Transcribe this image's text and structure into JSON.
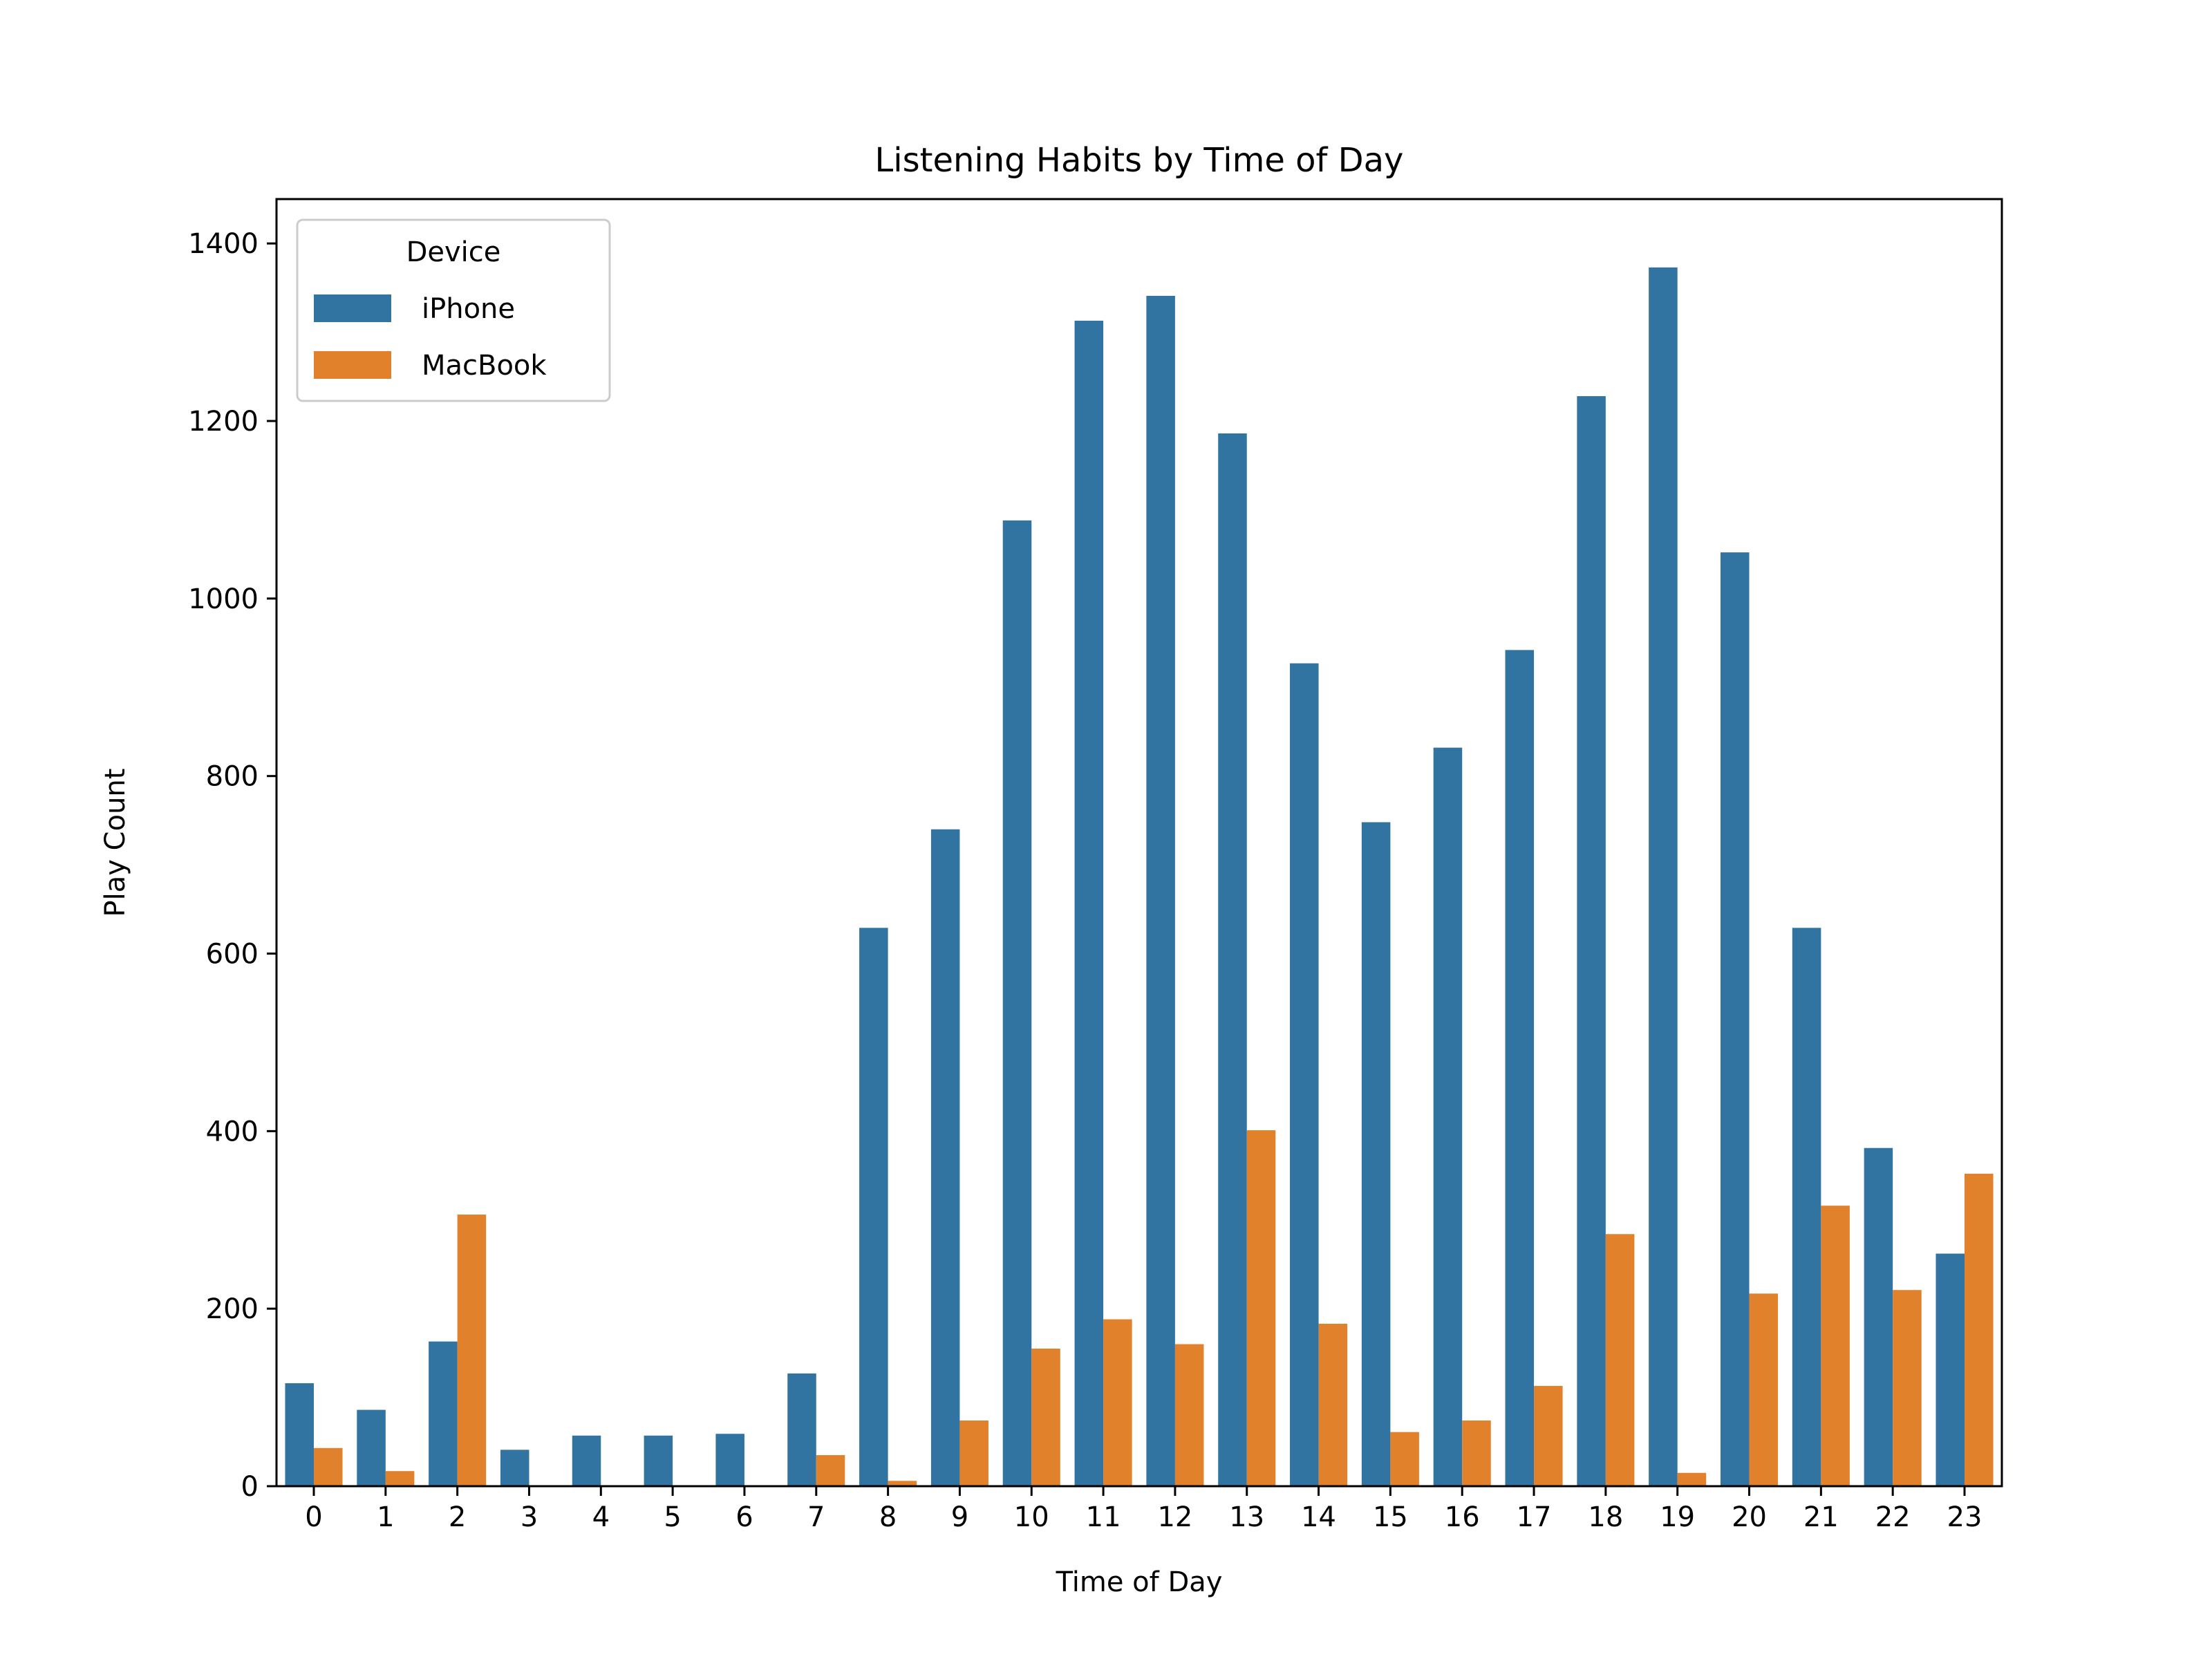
{
  "chart_data": {
    "type": "bar",
    "title": "Listening Habits by Time of Day",
    "xlabel": "Time of Day",
    "ylabel": "Play Count",
    "ylim": [
      0,
      1450
    ],
    "yticks": [
      "0",
      "200",
      "400",
      "600",
      "800",
      "1000",
      "1200",
      "1400"
    ],
    "categories": [
      "0",
      "1",
      "2",
      "3",
      "4",
      "5",
      "6",
      "7",
      "8",
      "9",
      "10",
      "11",
      "12",
      "13",
      "14",
      "15",
      "16",
      "17",
      "18",
      "19",
      "20",
      "21",
      "22",
      "23"
    ],
    "series": [
      {
        "name": "iPhone",
        "color": "#3274a1",
        "values": [
          116,
          86,
          163,
          41,
          57,
          57,
          59,
          127,
          629,
          740,
          1088,
          1313,
          1341,
          1186,
          927,
          748,
          832,
          942,
          1228,
          1373,
          1052,
          629,
          381,
          262
        ]
      },
      {
        "name": "MacBook",
        "color": "#e1812c",
        "values": [
          43,
          17,
          306,
          0,
          0,
          0,
          0,
          35,
          6,
          74,
          155,
          188,
          160,
          401,
          183,
          61,
          74,
          113,
          284,
          15,
          217,
          316,
          221,
          352
        ]
      }
    ],
    "legend": {
      "title": "Device",
      "position": "top-left"
    },
    "grid": false
  }
}
